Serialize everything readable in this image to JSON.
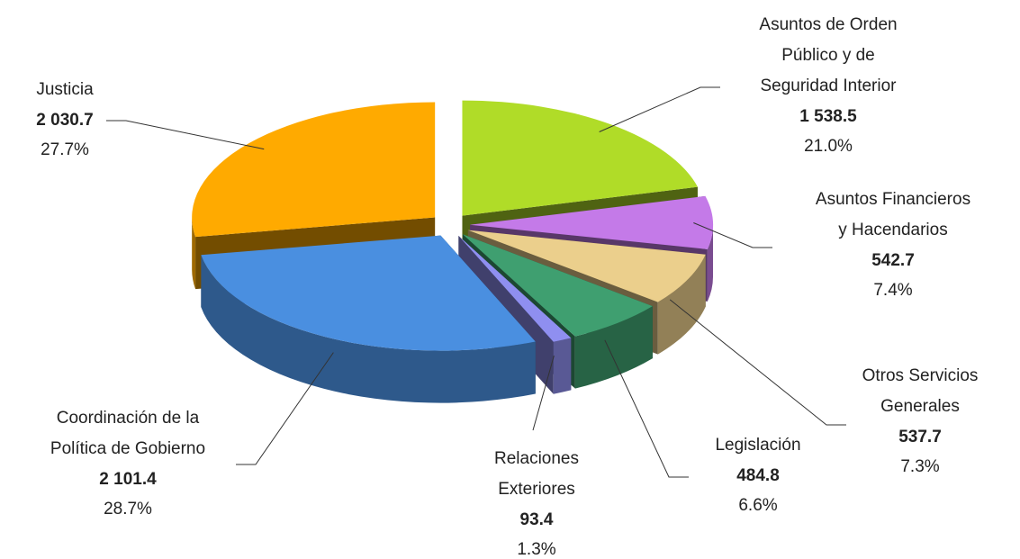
{
  "chart_data": {
    "type": "pie",
    "categories": [
      [
        "Asuntos de Orden",
        "Público y de",
        "Seguridad Interior"
      ],
      [
        "Asuntos Financieros",
        "y Hacendarios"
      ],
      [
        "Otros Servicios",
        "Generales"
      ],
      [
        "Legislación"
      ],
      [
        "Relaciones",
        "Exteriores"
      ],
      [
        "Coordinación de la",
        "Política de Gobierno"
      ],
      [
        "Justicia"
      ]
    ],
    "values": [
      1538.5,
      542.7,
      537.7,
      484.8,
      93.4,
      2101.4,
      2030.7
    ],
    "value_labels": [
      "1 538.5",
      "542.7",
      "537.7",
      "484.8",
      "93.4",
      "2 101.4",
      "2 030.7"
    ],
    "share_labels": [
      "21.0%",
      "7.4%",
      "7.3%",
      "6.6%",
      "1.3%",
      "28.7%",
      "27.7%"
    ],
    "colors": [
      "#b0dc28",
      "#c47ae8",
      "#ebcf8c",
      "#3f9f70",
      "#8f8ff0",
      "#4a8fe0",
      "#ffaa00"
    ]
  }
}
